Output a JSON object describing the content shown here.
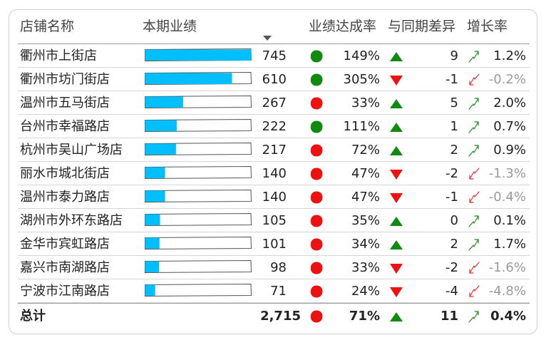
{
  "headers": {
    "store": "店铺名称",
    "current": "本期业绩",
    "achievement": "业绩达成率",
    "diff": "与同期差异",
    "growth": "增长率"
  },
  "colors": {
    "bar_fill": "#00bfff",
    "good": "#118a11",
    "bad": "#ee1111",
    "up_arrow": "#228b22",
    "down_arrow": "#e03030",
    "negative_text": "#9a9a9a"
  },
  "rows": [
    {
      "store": "衢州市上街店",
      "value": "745",
      "achievement": "149%",
      "status": "good",
      "diff": "9",
      "direction": "up",
      "growth": "1.2%",
      "negative": false,
      "bar_fraction": 1.0
    },
    {
      "store": "衢州市坊门街店",
      "value": "610",
      "achievement": "305%",
      "status": "good",
      "diff": "-1",
      "direction": "down",
      "growth": "-0.2%",
      "negative": true,
      "bar_fraction": 0.819
    },
    {
      "store": "温州市五马街店",
      "value": "267",
      "achievement": "33%",
      "status": "bad",
      "diff": "5",
      "direction": "up",
      "growth": "2.0%",
      "negative": false,
      "bar_fraction": 0.358
    },
    {
      "store": "台州市幸福路店",
      "value": "222",
      "achievement": "111%",
      "status": "good",
      "diff": "1",
      "direction": "up",
      "growth": "0.7%",
      "negative": false,
      "bar_fraction": 0.298
    },
    {
      "store": "杭州市吴山广场店",
      "value": "217",
      "achievement": "72%",
      "status": "bad",
      "diff": "2",
      "direction": "up",
      "growth": "0.9%",
      "negative": false,
      "bar_fraction": 0.291
    },
    {
      "store": "丽水市城北街店",
      "value": "140",
      "achievement": "47%",
      "status": "bad",
      "diff": "-2",
      "direction": "down",
      "growth": "-1.3%",
      "negative": true,
      "bar_fraction": 0.188
    },
    {
      "store": "温州市泰力路店",
      "value": "140",
      "achievement": "47%",
      "status": "bad",
      "diff": "-1",
      "direction": "down",
      "growth": "-0.4%",
      "negative": true,
      "bar_fraction": 0.188
    },
    {
      "store": "湖州市外环东路店",
      "value": "105",
      "achievement": "35%",
      "status": "bad",
      "diff": "0",
      "direction": "up",
      "growth": "0.1%",
      "negative": false,
      "bar_fraction": 0.141
    },
    {
      "store": "金华市宾虹路店",
      "value": "101",
      "achievement": "34%",
      "status": "bad",
      "diff": "2",
      "direction": "up",
      "growth": "1.7%",
      "negative": false,
      "bar_fraction": 0.136
    },
    {
      "store": "嘉兴市南湖路店",
      "value": "98",
      "achievement": "33%",
      "status": "bad",
      "diff": "-2",
      "direction": "down",
      "growth": "-1.6%",
      "negative": true,
      "bar_fraction": 0.132
    },
    {
      "store": "宁波市江南路店",
      "value": "71",
      "achievement": "24%",
      "status": "bad",
      "diff": "-4",
      "direction": "down",
      "growth": "-4.8%",
      "negative": true,
      "bar_fraction": 0.095
    }
  ],
  "total": {
    "label": "总计",
    "value": "2,715",
    "achievement": "71%",
    "status": "bad",
    "diff": "11",
    "direction": "up",
    "growth": "0.4%"
  }
}
